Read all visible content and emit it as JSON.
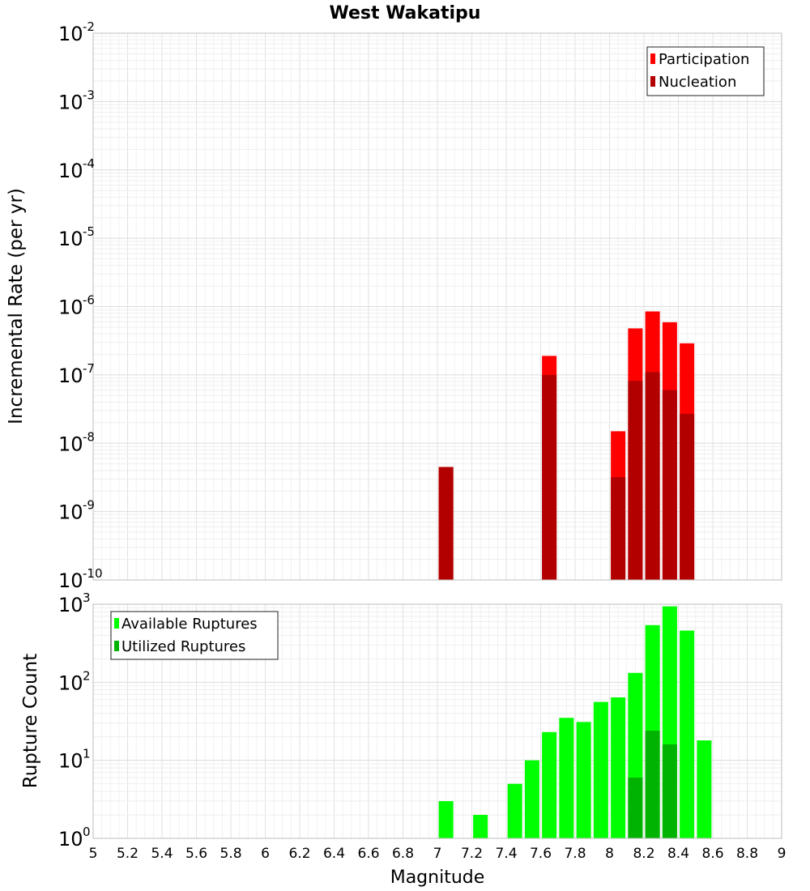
{
  "colors": {
    "participation": "#ff0000",
    "nucleation": "#b20000",
    "available": "#00ff00",
    "utilized": "#00b300",
    "grid": "#e6e6e6",
    "frame": "#bdbdbd"
  },
  "chart_data": [
    {
      "type": "bar",
      "title": "West Wakatipu",
      "xlabel": "Magnitude",
      "ylabel": "Incremental Rate (per yr)",
      "yscale": "log",
      "xlim": [
        5,
        9
      ],
      "ylim_exp": [
        -10,
        -2
      ],
      "xticks": [
        "5",
        "5.2",
        "5.4",
        "5.6",
        "5.8",
        "6",
        "6.2",
        "6.4",
        "6.6",
        "6.8",
        "7",
        "7.2",
        "7.4",
        "7.6",
        "7.8",
        "8",
        "8.2",
        "8.4",
        "8.6",
        "8.8",
        "9"
      ],
      "yticks": [
        {
          "base": "10",
          "exp": "-2"
        },
        {
          "base": "10",
          "exp": "-3"
        },
        {
          "base": "10",
          "exp": "-4"
        },
        {
          "base": "10",
          "exp": "-5"
        },
        {
          "base": "10",
          "exp": "-6"
        },
        {
          "base": "10",
          "exp": "-7"
        },
        {
          "base": "10",
          "exp": "-8"
        },
        {
          "base": "10",
          "exp": "-9"
        },
        {
          "base": "10",
          "exp": "-10"
        }
      ],
      "legend": [
        "Participation",
        "Nucleation"
      ],
      "legend_position": "top-right",
      "series": [
        {
          "name": "Participation",
          "mags": [
            7.05,
            7.65,
            8.05,
            8.15,
            8.25,
            8.35,
            8.45
          ],
          "values": [
            4.5e-09,
            1.9e-07,
            1.5e-08,
            4.8e-07,
            8.5e-07,
            5.9e-07,
            2.9e-07
          ]
        },
        {
          "name": "Nucleation",
          "mags": [
            7.05,
            7.65,
            8.05,
            8.15,
            8.25,
            8.35,
            8.45
          ],
          "values": [
            4.5e-09,
            1e-07,
            3.2e-09,
            8.2e-08,
            1.1e-07,
            6e-08,
            2.7e-08
          ]
        }
      ]
    },
    {
      "type": "bar",
      "title": "",
      "xlabel": "Magnitude",
      "ylabel": "Rupture Count",
      "yscale": "log",
      "xlim": [
        5,
        9
      ],
      "ylim_exp": [
        0,
        3
      ],
      "yticks": [
        {
          "base": "10",
          "exp": "3"
        },
        {
          "base": "10",
          "exp": "2"
        },
        {
          "base": "10",
          "exp": "1"
        },
        {
          "base": "10",
          "exp": "0"
        }
      ],
      "legend": [
        "Available Ruptures",
        "Utilized Ruptures"
      ],
      "legend_position": "top-left",
      "series": [
        {
          "name": "Available Ruptures",
          "mags": [
            7.05,
            7.25,
            7.35,
            7.45,
            7.55,
            7.65,
            7.75,
            7.85,
            7.95,
            8.05,
            8.15,
            8.25,
            8.35,
            8.45,
            8.55
          ],
          "values": [
            3,
            2,
            1,
            5,
            10,
            23,
            35,
            31,
            56,
            64,
            132,
            540,
            940,
            460,
            18
          ]
        },
        {
          "name": "Utilized Ruptures",
          "mags": [
            7.05,
            7.65,
            8.05,
            8.15,
            8.25,
            8.35,
            8.45
          ],
          "values": [
            1,
            1,
            1,
            6,
            24,
            16,
            1
          ]
        }
      ]
    }
  ]
}
